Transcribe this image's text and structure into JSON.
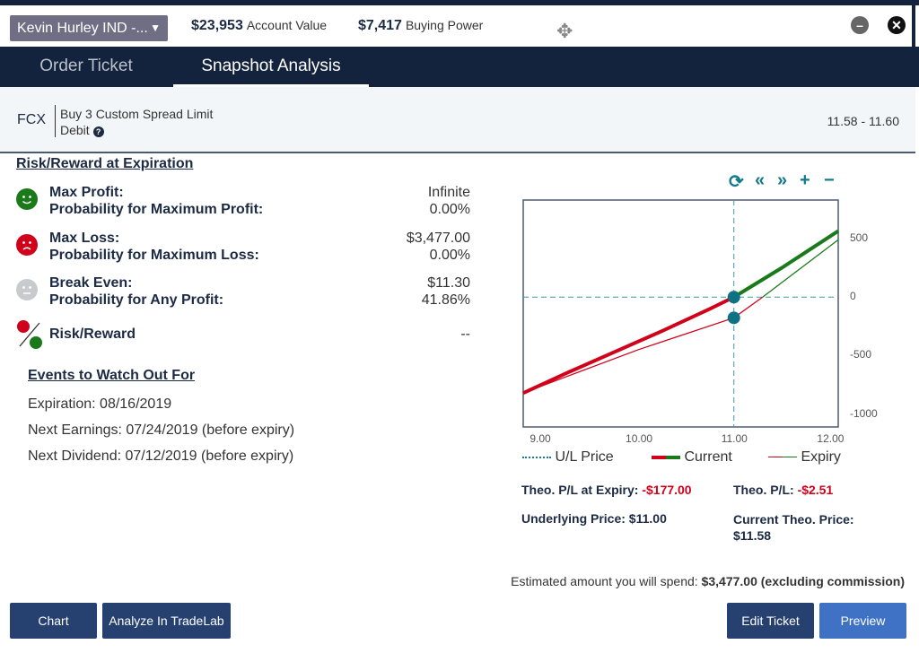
{
  "header": {
    "account": "Kevin Hurley IND -...",
    "account_value": "$23,953",
    "account_value_label": "Account Value",
    "buying_power": "$7,417",
    "buying_power_label": "Buying Power"
  },
  "tabs": [
    {
      "label": "Order Ticket"
    },
    {
      "label": "Snapshot Analysis",
      "active": true
    }
  ],
  "order": {
    "symbol": "FCX",
    "line1": "Buy 3 Custom Spread Limit",
    "line2": "Debit",
    "range": "11.58 - 11.60"
  },
  "risk": {
    "title": "Risk/Reward at Expiration",
    "rows": [
      {
        "l1": "Max Profit:",
        "v1": "Infinite",
        "l2": "Probability for Maximum Profit:",
        "v2": "0.00%"
      },
      {
        "l1": "Max Loss:",
        "v1": "$3,477.00",
        "l2": "Probability for Maximum Loss:",
        "v2": "0.00%"
      },
      {
        "l1": "Break Even:",
        "v1": "$11.30",
        "l2": "Probability for Any Profit:",
        "v2": "41.86%"
      }
    ],
    "rr_label": "Risk/Reward",
    "rr_value": "--"
  },
  "events": {
    "title": "Events to Watch Out For",
    "items": [
      "Expiration: 08/16/2019",
      "Next Earnings: 07/24/2019 (before expiry)",
      "Next Dividend: 07/12/2019 (before expiry)"
    ]
  },
  "colors": {
    "profit": "#1a7a1a",
    "loss": "#d0021b",
    "accent": "#127a8a",
    "navy": "#13233d"
  },
  "chart_data": {
    "type": "line",
    "xlim": [
      8.8,
      12.09
    ],
    "ylim": [
      -1110,
      830
    ],
    "x_ticks": [
      "9.00",
      "10.00",
      "11.00",
      "12.00"
    ],
    "x_tick_values": [
      9,
      10,
      11,
      12
    ],
    "y_ticks": [
      "500",
      "0",
      "-500",
      "-1000"
    ],
    "y_tick_values": [
      500,
      0,
      -500,
      -1000
    ],
    "ul_price": 11.0,
    "series": [
      {
        "name": "Current",
        "x": [
          8.8,
          9.25,
          9.75,
          10.25,
          10.75,
          11,
          11.5,
          12.09
        ],
        "y": [
          -820,
          -650,
          -470,
          -290,
          -100,
          0,
          250,
          565
        ]
      },
      {
        "name": "Expiry",
        "x": [
          8.8,
          9.25,
          10,
          11,
          11.3,
          12.09
        ],
        "y": [
          -820,
          -680,
          -450,
          -177,
          0,
          490
        ]
      }
    ],
    "markers": [
      {
        "x": 11,
        "y": 0
      },
      {
        "x": 11,
        "y": -177
      }
    ],
    "legend": [
      "U/L Price",
      "Current",
      "Expiry"
    ]
  },
  "stats": {
    "theo_expiry_label": "Theo. P/L at Expiry:",
    "theo_expiry": "-$177.00",
    "theo_label": "Theo. P/L:",
    "theo": "-$2.51",
    "underlying": "Underlying Price: $11.00",
    "cur_theo_label": "Current Theo. Price:",
    "cur_theo": "$11.58"
  },
  "footer": {
    "est_label": "Estimated amount you will spend:",
    "est_value": "$3,477.00 (excluding commission)",
    "chart": "Chart",
    "tradelab": "Analyze In TradeLab",
    "edit": "Edit Ticket",
    "preview": "Preview"
  }
}
